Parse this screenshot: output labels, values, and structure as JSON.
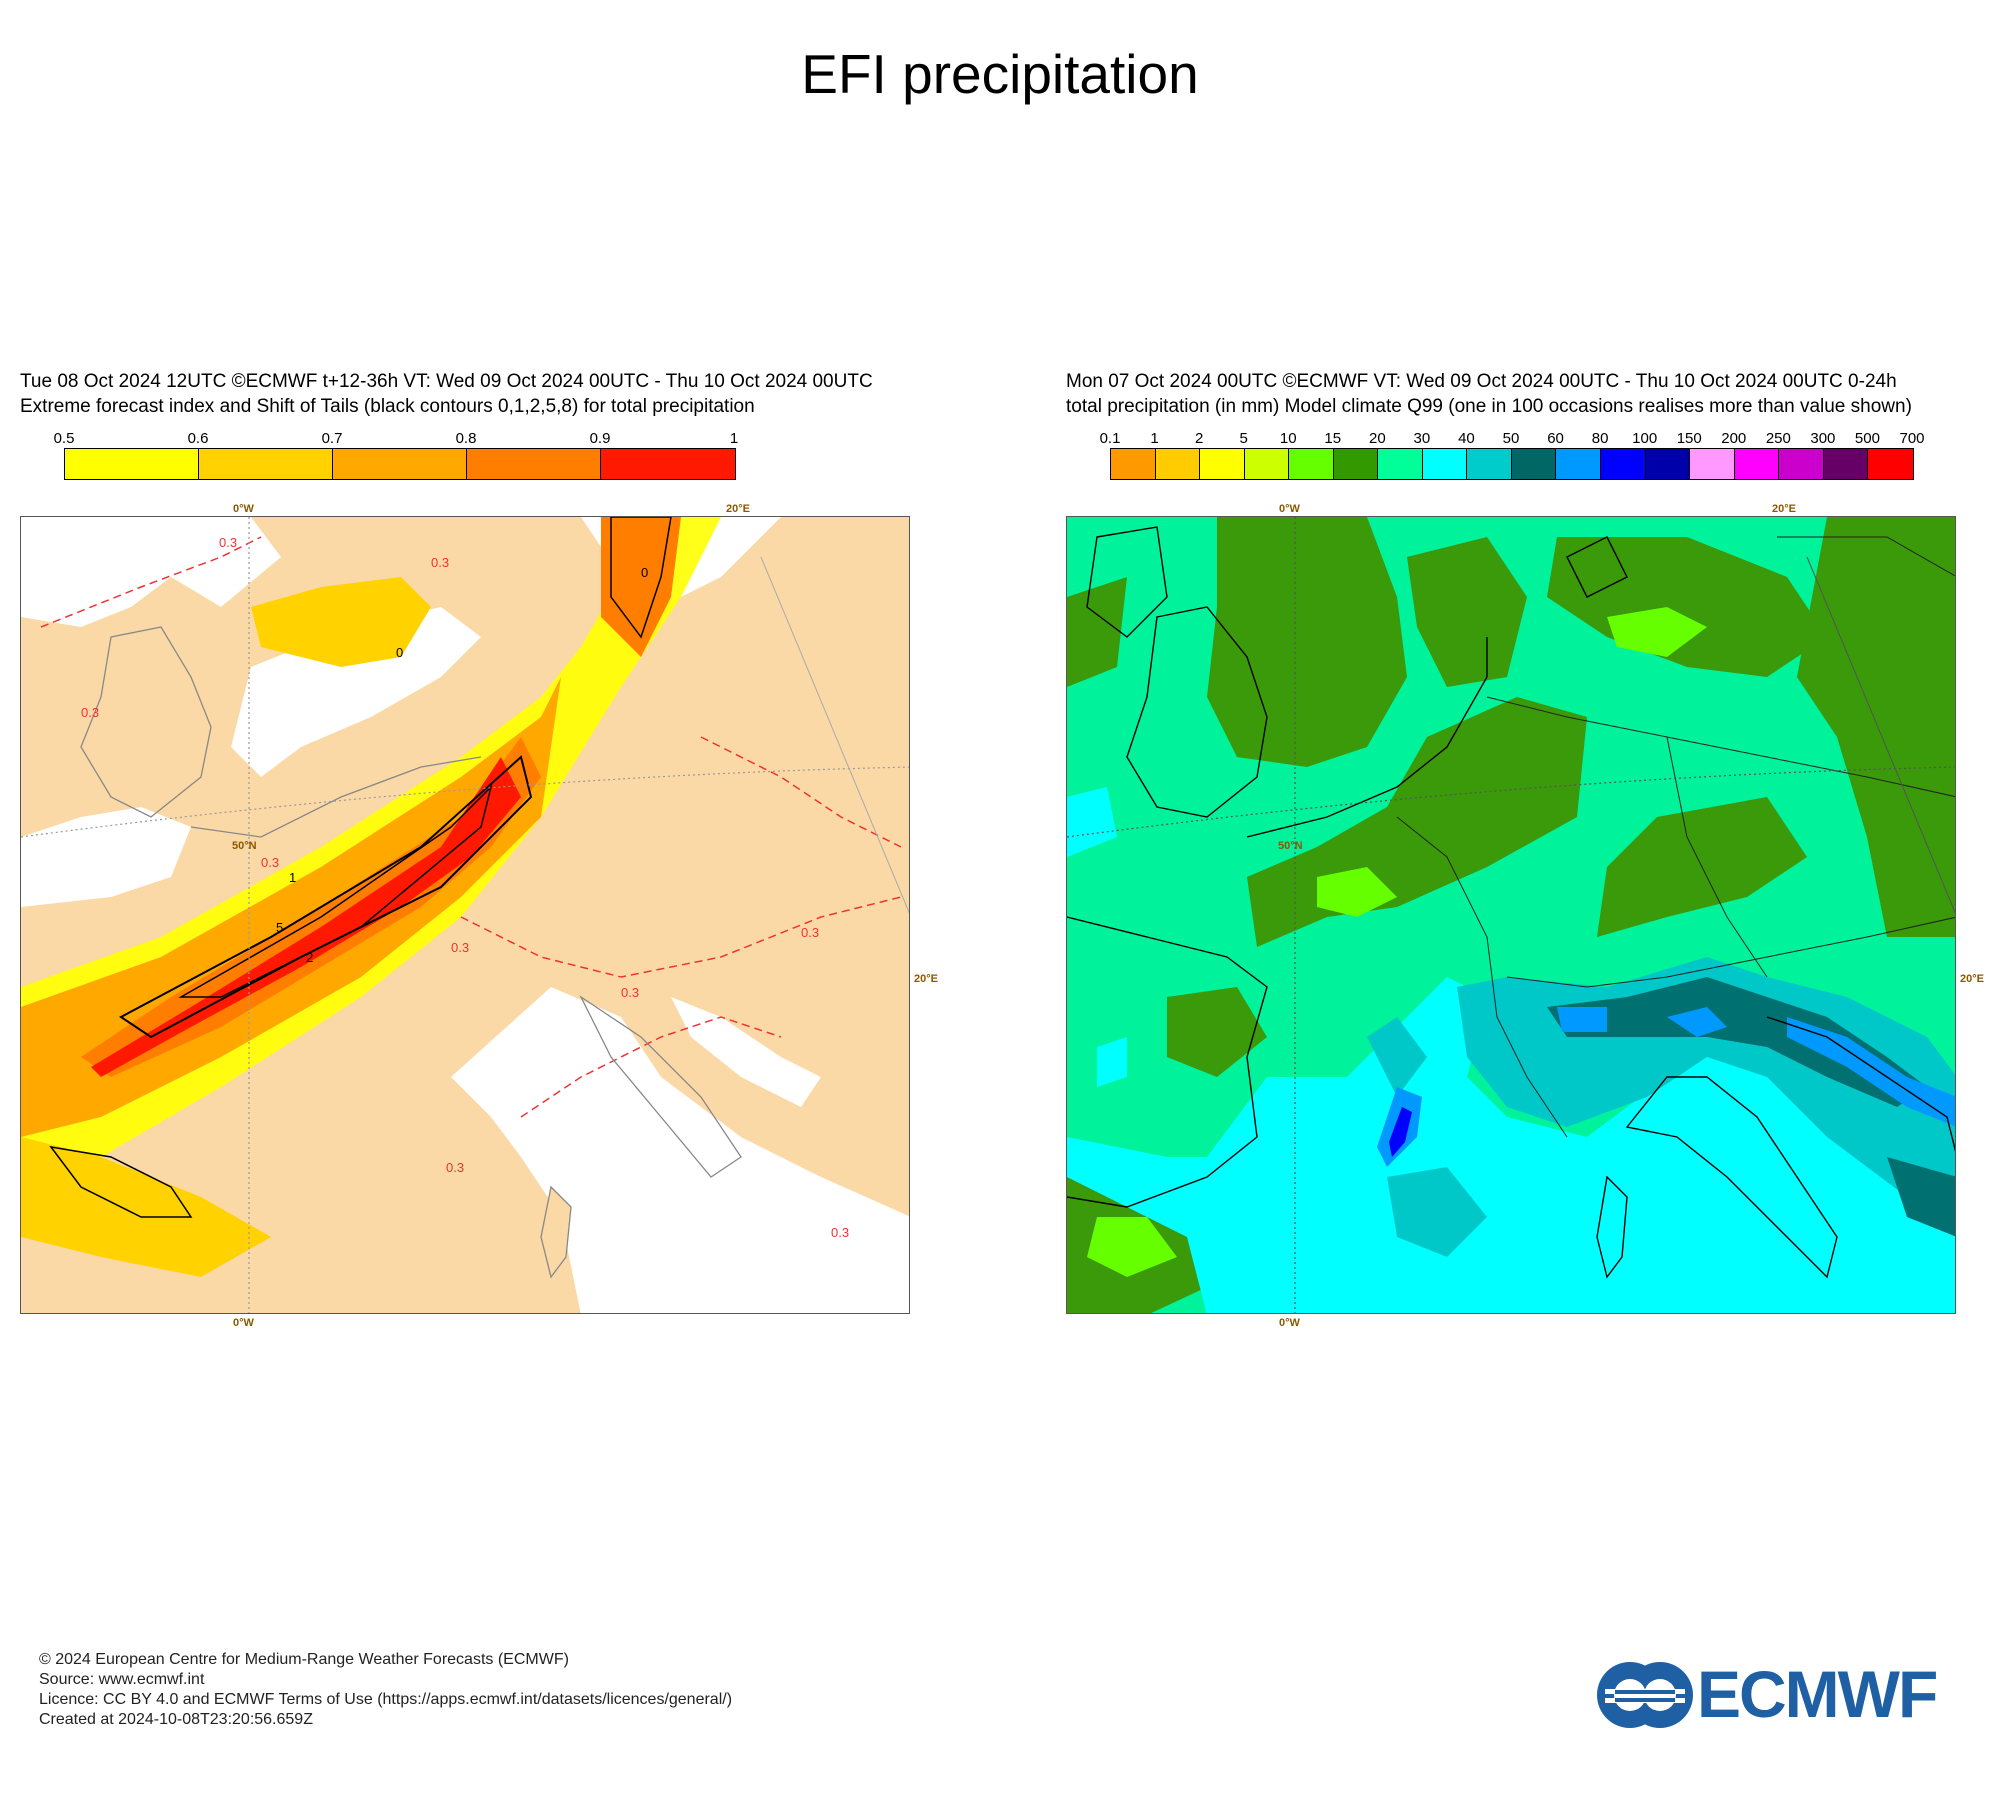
{
  "page": {
    "title": "EFI precipitation"
  },
  "left_panel": {
    "header_line1": "Tue 08 Oct 2024 12UTC ©ECMWF t+12-36h  VT: Wed 09 Oct 2024 00UTC - Thu 10 Oct 2024 00UTC",
    "header_line2": "Extreme forecast index and Shift of Tails (black contours 0,1,2,5,8) for total precipitation",
    "colorbar": {
      "ticks": [
        "0.5",
        "0.6",
        "0.7",
        "0.8",
        "0.9",
        "1"
      ],
      "colors": [
        "#ffff00",
        "#ffd200",
        "#ffa800",
        "#ff7e00",
        "#ff1900"
      ]
    },
    "map_labels": {
      "lon_top_0": "0°W",
      "lon_top_20": "20°E",
      "lon_bottom_0": "0°W",
      "lat_50": "50°N",
      "lon_right_20": "20°E",
      "contour_labels": [
        "0.3",
        "0.3",
        "0.3",
        "0.3",
        "0.3",
        "0.3",
        "0.3",
        "0.3",
        "0.3",
        "0",
        "0",
        "1",
        "5",
        "2"
      ]
    }
  },
  "right_panel": {
    "header_line1": "Mon 07 Oct 2024 00UTC ©ECMWF VT: Wed 09 Oct 2024 00UTC - Thu 10 Oct 2024 00UTC   0-24h",
    "header_line2": "total precipitation (in mm)  Model climate Q99 (one in 100 occasions realises more than value shown)",
    "colorbar": {
      "ticks": [
        "0.1",
        "1",
        "2",
        "5",
        "10",
        "15",
        "20",
        "30",
        "40",
        "50",
        "60",
        "80",
        "100",
        "150",
        "200",
        "250",
        "300",
        "500",
        "700"
      ],
      "colors": [
        "#ff9900",
        "#ffcc00",
        "#ffff00",
        "#ccff00",
        "#66ff00",
        "#339900",
        "#00ff99",
        "#00ffff",
        "#00cccc",
        "#006666",
        "#0099ff",
        "#0000ff",
        "#0000aa",
        "#ff99ff",
        "#ff00ff",
        "#cc00cc",
        "#660066",
        "#ff0000"
      ]
    },
    "map_labels": {
      "lon_top_0": "0°W",
      "lon_top_20": "20°E",
      "lon_bottom_0": "0°W",
      "lat_50": "50°N",
      "lon_right_20": "20°E"
    }
  },
  "footer": {
    "line1": "© 2024 European Centre for Medium-Range Weather Forecasts (ECMWF)",
    "line2": "Source: www.ecmwf.int",
    "line3": "Licence: CC BY 4.0 and ECMWF Terms of Use (https://apps.ecmwf.int/datasets/licences/general/)",
    "line4": "Created at 2024-10-08T23:20:56.659Z"
  },
  "logo": {
    "text": "ECMWF",
    "color": "#1f5fa3",
    "icon": "ecmwf-logo-icon"
  }
}
